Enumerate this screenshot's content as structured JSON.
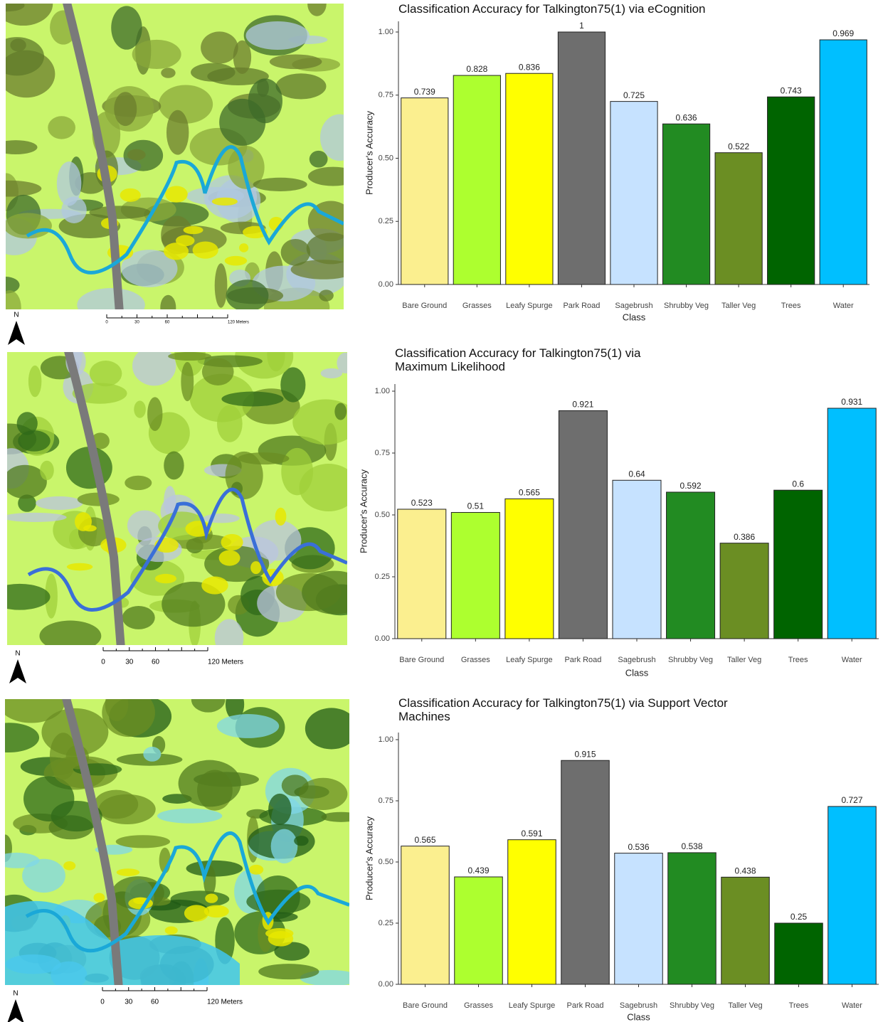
{
  "chart_data": [
    {
      "type": "bar",
      "title": "Classification Accuracy for Talkington75(1) via eCognition",
      "xlabel": "Class",
      "ylabel": "Producer's Accuracy",
      "categories": [
        "Bare Ground",
        "Grasses",
        "Leafy Spurge",
        "Park Road",
        "Sagebrush",
        "Shrubby Veg",
        "Taller Veg",
        "Trees",
        "Water"
      ],
      "values": [
        0.739,
        0.828,
        0.836,
        1,
        0.725,
        0.636,
        0.522,
        0.743,
        0.969
      ],
      "colors": [
        "#fbef8f",
        "#adff2f",
        "#ffff00",
        "#6e6e6e",
        "#c6e2ff",
        "#228b22",
        "#6b8e23",
        "#006400",
        "#00bfff"
      ],
      "ylim": [
        0,
        1
      ],
      "yticks": [
        {
          "value": 0,
          "label": "0.00"
        },
        {
          "value": 0.25,
          "label": "0.25"
        },
        {
          "value": 0.5,
          "label": "0.50"
        },
        {
          "value": 0.75,
          "label": "0.75"
        },
        {
          "value": 1,
          "label": "1.00"
        }
      ]
    },
    {
      "type": "bar",
      "title": "Classification Accuracy for Talkington75(1) via Maximum Likelihood",
      "xlabel": "Class",
      "ylabel": "Producer's Accuracy",
      "categories": [
        "Bare Ground",
        "Grasses",
        "Leafy Spurge",
        "Park Road",
        "Sagebrush",
        "Shrubby Veg",
        "Taller Veg",
        "Trees",
        "Water"
      ],
      "values": [
        0.523,
        0.51,
        0.565,
        0.921,
        0.64,
        0.592,
        0.386,
        0.6,
        0.931
      ],
      "colors": [
        "#fbef8f",
        "#adff2f",
        "#ffff00",
        "#6e6e6e",
        "#c6e2ff",
        "#228b22",
        "#6b8e23",
        "#006400",
        "#00bfff"
      ],
      "ylim": [
        0,
        1
      ],
      "yticks": [
        {
          "value": 0,
          "label": "0.00"
        },
        {
          "value": 0.25,
          "label": "0.25"
        },
        {
          "value": 0.5,
          "label": "0.50"
        },
        {
          "value": 0.75,
          "label": "0.75"
        },
        {
          "value": 1,
          "label": "1.00"
        }
      ]
    },
    {
      "type": "bar",
      "title": "Classification Accuracy for Talkington75(1) via Support Vector Machines",
      "xlabel": "Class",
      "ylabel": "Producer's Accuracy",
      "categories": [
        "Bare Ground",
        "Grasses",
        "Leafy Spurge",
        "Park Road",
        "Sagebrush",
        "Shrubby Veg",
        "Taller Veg",
        "Trees",
        "Water"
      ],
      "values": [
        0.565,
        0.439,
        0.591,
        0.915,
        0.536,
        0.538,
        0.438,
        0.25,
        0.727
      ],
      "colors": [
        "#fbef8f",
        "#adff2f",
        "#ffff00",
        "#6e6e6e",
        "#c6e2ff",
        "#228b22",
        "#6b8e23",
        "#006400",
        "#00bfff"
      ],
      "ylim": [
        0,
        1
      ],
      "yticks": [
        {
          "value": 0,
          "label": "0.00"
        },
        {
          "value": 0.25,
          "label": "0.25"
        },
        {
          "value": 0.5,
          "label": "0.50"
        },
        {
          "value": 0.75,
          "label": "0.75"
        },
        {
          "value": 1,
          "label": "1.00"
        }
      ]
    }
  ],
  "maps": [
    {
      "north": "N",
      "scale_labels": [
        "0",
        "30",
        "60",
        "120 Meters"
      ]
    },
    {
      "north": "N",
      "scale_labels": [
        "0",
        "30",
        "60",
        "120 Meters"
      ]
    },
    {
      "north": "N",
      "scale_labels": [
        "0",
        "30",
        "60",
        "120 Meters"
      ]
    }
  ]
}
